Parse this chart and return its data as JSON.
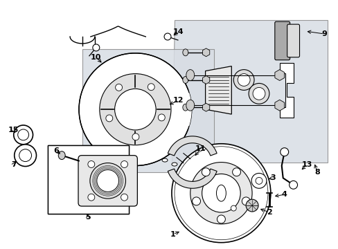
{
  "background_color": "#ffffff",
  "fig_w": 4.89,
  "fig_h": 3.6,
  "dpi": 100
}
